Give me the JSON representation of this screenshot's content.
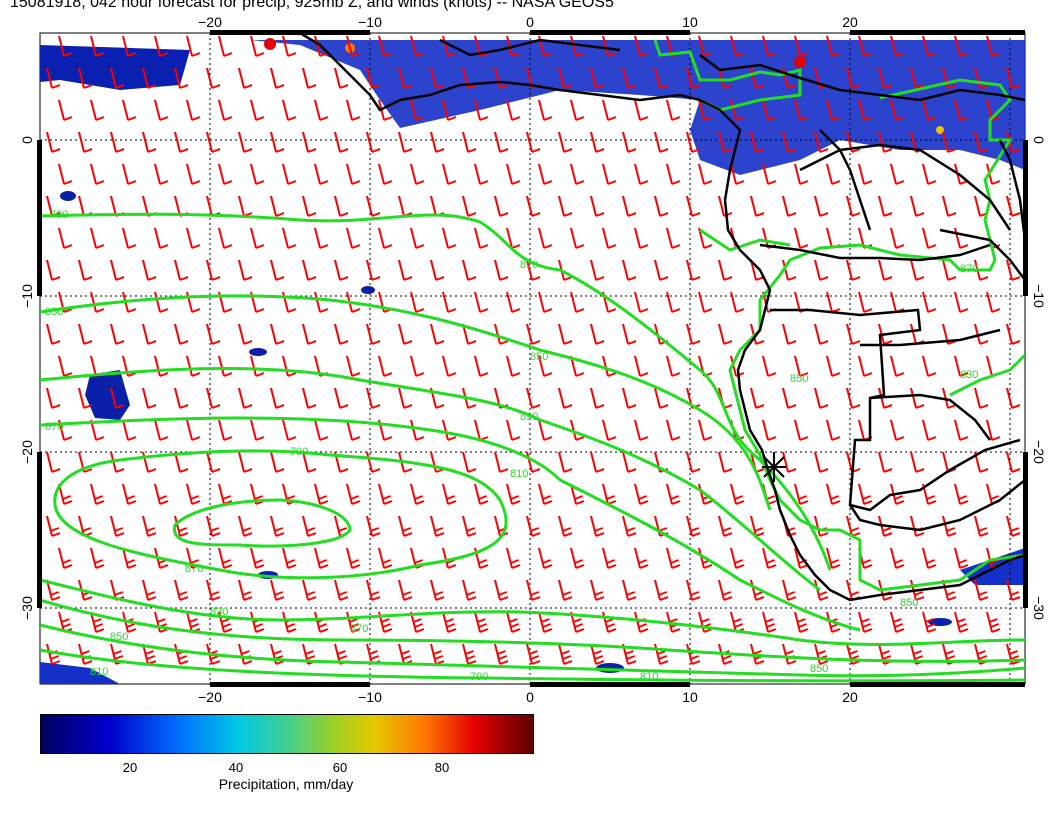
{
  "title": "15081918, 042 hour forecast for precip, 925mb Z, and winds (knots) -- NASA GEOS5",
  "map": {
    "lon_ticks_bottom": [
      "−20",
      "−10",
      "0",
      "10",
      "20"
    ],
    "lon_ticks_top": [
      "−20",
      "−10",
      "0",
      "10",
      "20"
    ],
    "lat_ticks": [
      "0",
      "−10",
      "−20",
      "−30"
    ],
    "contour_labels": [
      "790",
      "810",
      "830",
      "850",
      "870",
      "890",
      "790",
      "810",
      "870",
      "830",
      "850",
      "870",
      "850",
      "810",
      "790",
      "810",
      "850",
      "850",
      "870",
      "830"
    ],
    "contour_color": "#22dd22",
    "wind_barb_color": "#ff0000",
    "coastline_color": "#000000"
  },
  "colorbar": {
    "ticks": [
      "20",
      "40",
      "60",
      "80"
    ],
    "label": "Precipitation, mm/day",
    "colors": [
      "#000060",
      "#0000cc",
      "#0070ff",
      "#00c8e6",
      "#40d090",
      "#a0d020",
      "#e6c800",
      "#ff7800",
      "#e60000",
      "#600000"
    ]
  }
}
